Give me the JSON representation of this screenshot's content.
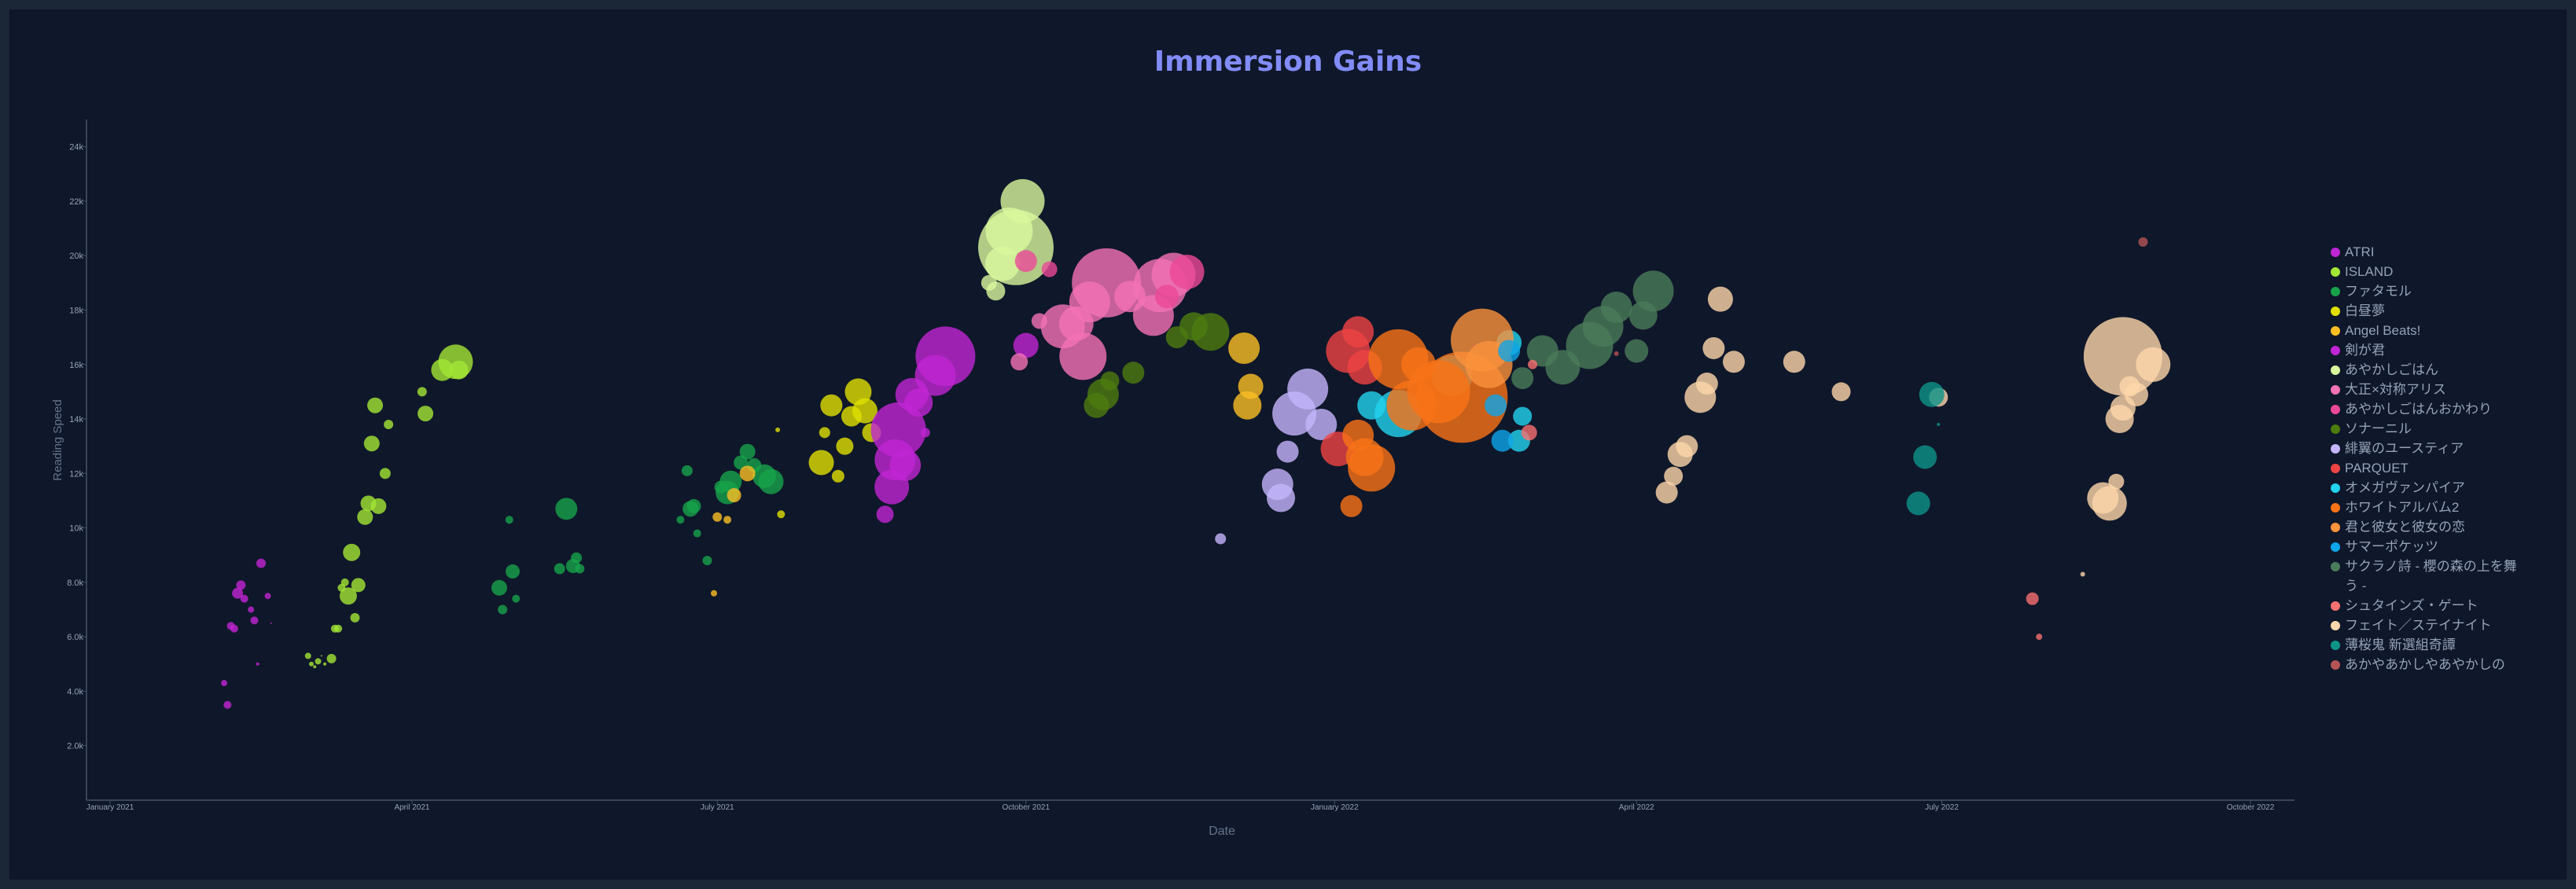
{
  "chart_data": {
    "type": "scatter",
    "title": "Immersion Gains",
    "xlabel": "Date",
    "ylabel": "Reading Speed",
    "x_ticks": [
      "January 2021",
      "April 2021",
      "July 2021",
      "October 2021",
      "January 2022",
      "April 2022",
      "July 2022",
      "October 2022"
    ],
    "y_ticks": [
      "2.0k",
      "4.0k",
      "6.0k",
      "8.0k",
      "10k",
      "12k",
      "14k",
      "16k",
      "18k",
      "20k",
      "22k",
      "24k"
    ],
    "legend_position": "right",
    "grid": false,
    "series": [
      {
        "name": "ATRI",
        "color": "#c026d3",
        "points": [
          [
            "2021-02-04",
            4300,
            4
          ],
          [
            "2021-02-05",
            3500,
            5
          ],
          [
            "2021-02-06",
            6400,
            5
          ],
          [
            "2021-02-07",
            6300,
            5
          ],
          [
            "2021-02-08",
            7600,
            7
          ],
          [
            "2021-02-09",
            7900,
            6
          ],
          [
            "2021-02-10",
            7400,
            5
          ],
          [
            "2021-02-12",
            7000,
            4
          ],
          [
            "2021-02-13",
            6600,
            5
          ],
          [
            "2021-02-14",
            5000,
            2
          ],
          [
            "2021-02-15",
            8700,
            6
          ],
          [
            "2021-02-17",
            7500,
            4
          ],
          [
            "2021-02-18",
            6500,
            1
          ]
        ]
      },
      {
        "name": "ISLAND",
        "color": "#a3e635",
        "points": [
          [
            "2021-03-01",
            5300,
            4
          ],
          [
            "2021-03-02",
            5000,
            3
          ],
          [
            "2021-03-03",
            4900,
            2
          ],
          [
            "2021-03-04",
            5100,
            4
          ],
          [
            "2021-03-05",
            5300,
            1
          ],
          [
            "2021-03-06",
            5000,
            2
          ],
          [
            "2021-03-08",
            5200,
            6
          ],
          [
            "2021-03-09",
            6300,
            5
          ],
          [
            "2021-03-10",
            6300,
            5
          ],
          [
            "2021-03-11",
            7800,
            5
          ],
          [
            "2021-03-12",
            8000,
            5
          ],
          [
            "2021-03-13",
            7500,
            11
          ],
          [
            "2021-03-14",
            9100,
            11
          ],
          [
            "2021-03-15",
            6700,
            6
          ],
          [
            "2021-03-16",
            7900,
            9
          ],
          [
            "2021-03-18",
            10400,
            10
          ],
          [
            "2021-03-19",
            10900,
            10
          ],
          [
            "2021-03-20",
            13100,
            10
          ],
          [
            "2021-03-21",
            14500,
            10
          ],
          [
            "2021-03-22",
            10800,
            10
          ],
          [
            "2021-03-24",
            12000,
            7
          ],
          [
            "2021-03-25",
            13800,
            6
          ],
          [
            "2021-04-04",
            15000,
            6
          ],
          [
            "2021-04-05",
            14200,
            10
          ],
          [
            "2021-04-10",
            15800,
            14
          ],
          [
            "2021-04-14",
            16100,
            22
          ],
          [
            "2021-04-15",
            15800,
            12
          ]
        ]
      },
      {
        "name": "ファタモル",
        "color": "#16a34a",
        "points": [
          [
            "2021-04-27",
            7800,
            10
          ],
          [
            "2021-04-28",
            7000,
            6
          ],
          [
            "2021-04-30",
            10300,
            5
          ],
          [
            "2021-05-01",
            8400,
            9
          ],
          [
            "2021-05-02",
            7400,
            5
          ],
          [
            "2021-05-15",
            8500,
            7
          ],
          [
            "2021-05-17",
            10700,
            14
          ],
          [
            "2021-05-19",
            8600,
            9
          ],
          [
            "2021-05-20",
            8900,
            7
          ],
          [
            "2021-05-21",
            8500,
            6
          ],
          [
            "2021-06-20",
            10300,
            5
          ],
          [
            "2021-06-22",
            12100,
            7
          ],
          [
            "2021-06-23",
            10700,
            10
          ],
          [
            "2021-06-24",
            10800,
            9
          ],
          [
            "2021-06-25",
            9800,
            5
          ],
          [
            "2021-06-28",
            8800,
            6
          ],
          [
            "2021-07-02",
            11500,
            8
          ],
          [
            "2021-07-04",
            11300,
            15
          ],
          [
            "2021-07-05",
            11700,
            14
          ],
          [
            "2021-07-08",
            12400,
            9
          ],
          [
            "2021-07-10",
            12800,
            10
          ],
          [
            "2021-07-12",
            12300,
            9
          ],
          [
            "2021-07-15",
            11900,
            15
          ],
          [
            "2021-07-17",
            11700,
            16
          ]
        ]
      },
      {
        "name": "白昼夢",
        "color": "#e0e000",
        "points": [
          [
            "2021-07-19",
            13600,
            3
          ],
          [
            "2021-07-20",
            10500,
            5
          ],
          [
            "2021-08-01",
            12400,
            16
          ],
          [
            "2021-08-02",
            13500,
            7
          ],
          [
            "2021-08-04",
            14500,
            14
          ],
          [
            "2021-08-06",
            11900,
            8
          ],
          [
            "2021-08-08",
            13000,
            11
          ],
          [
            "2021-08-10",
            14100,
            13
          ],
          [
            "2021-08-12",
            15000,
            17
          ],
          [
            "2021-08-14",
            14300,
            16
          ],
          [
            "2021-08-16",
            13500,
            12
          ]
        ]
      },
      {
        "name": "Angel Beats!",
        "color": "#fbbf24",
        "points": [
          [
            "2021-06-30",
            7600,
            4
          ],
          [
            "2021-07-01",
            10400,
            6
          ],
          [
            "2021-07-04",
            10300,
            5
          ],
          [
            "2021-07-06",
            11200,
            9
          ],
          [
            "2021-07-10",
            12000,
            10
          ],
          [
            "2021-12-05",
            16600,
            20
          ],
          [
            "2021-12-06",
            14500,
            18
          ],
          [
            "2021-12-07",
            15200,
            16
          ]
        ]
      },
      {
        "name": "剣が君",
        "color": "#c026d3",
        "points": [
          [
            "2021-08-20",
            10500,
            11
          ],
          [
            "2021-08-22",
            11500,
            22
          ],
          [
            "2021-08-23",
            12500,
            26
          ],
          [
            "2021-08-24",
            13600,
            35
          ],
          [
            "2021-08-26",
            12300,
            20
          ],
          [
            "2021-08-28",
            14900,
            21
          ],
          [
            "2021-08-30",
            14600,
            18
          ],
          [
            "2021-09-01",
            13500,
            6
          ],
          [
            "2021-09-04",
            15600,
            26
          ],
          [
            "2021-09-07",
            16300,
            38
          ],
          [
            "2021-10-01",
            16700,
            16
          ]
        ]
      },
      {
        "name": "あやかしごはん",
        "color": "#d9f99d",
        "points": [
          [
            "2021-09-20",
            19000,
            10
          ],
          [
            "2021-09-22",
            18700,
            12
          ],
          [
            "2021-09-24",
            19700,
            22
          ],
          [
            "2021-09-26",
            20900,
            30
          ],
          [
            "2021-09-28",
            20300,
            48
          ],
          [
            "2021-09-30",
            22000,
            28
          ]
        ]
      },
      {
        "name": "大正×対称アリス",
        "color": "#f472b6",
        "points": [
          [
            "2021-09-29",
            16100,
            11
          ],
          [
            "2021-10-05",
            17600,
            10
          ],
          [
            "2021-10-12",
            17400,
            28
          ],
          [
            "2021-10-16",
            17500,
            22
          ],
          [
            "2021-10-18",
            16300,
            30
          ],
          [
            "2021-10-20",
            18300,
            26
          ],
          [
            "2021-10-25",
            19000,
            44
          ],
          [
            "2021-11-01",
            18500,
            20
          ],
          [
            "2021-11-08",
            17800,
            26
          ],
          [
            "2021-11-10",
            18900,
            34
          ],
          [
            "2021-11-14",
            19300,
            28
          ]
        ]
      },
      {
        "name": "あやかしごはんおかわり",
        "color": "#ec4899",
        "points": [
          [
            "2021-10-01",
            19800,
            14
          ],
          [
            "2021-10-08",
            19500,
            10
          ],
          [
            "2021-11-12",
            18500,
            15
          ],
          [
            "2021-11-18",
            19400,
            22
          ]
        ]
      },
      {
        "name": "ソナーニル",
        "color": "#4d7c0f",
        "points": [
          [
            "2021-10-22",
            14500,
            16
          ],
          [
            "2021-10-24",
            14900,
            20
          ],
          [
            "2021-10-26",
            15400,
            12
          ],
          [
            "2021-11-02",
            15700,
            14
          ],
          [
            "2021-11-15",
            17000,
            14
          ],
          [
            "2021-11-20",
            17400,
            18
          ],
          [
            "2021-11-25",
            17200,
            24
          ]
        ]
      },
      {
        "name": "緋翼のユースティア",
        "color": "#c4b5fd",
        "points": [
          [
            "2021-11-28",
            9600,
            7
          ],
          [
            "2021-12-15",
            11600,
            20
          ],
          [
            "2021-12-16",
            11100,
            18
          ],
          [
            "2021-12-18",
            12800,
            14
          ],
          [
            "2021-12-20",
            14200,
            28
          ],
          [
            "2021-12-24",
            15100,
            26
          ],
          [
            "2021-12-28",
            13800,
            20
          ]
        ]
      },
      {
        "name": "PARQUET",
        "color": "#ef4444",
        "points": [
          [
            "2022-01-02",
            12900,
            22
          ],
          [
            "2022-01-05",
            16500,
            28
          ],
          [
            "2022-01-08",
            17200,
            20
          ],
          [
            "2022-01-10",
            15900,
            22
          ]
        ]
      },
      {
        "name": "オメガヴァンパイア",
        "color": "#22d3ee",
        "points": [
          [
            "2022-01-12",
            14500,
            18
          ],
          [
            "2022-01-20",
            14200,
            30
          ],
          [
            "2022-02-05",
            15600,
            26
          ],
          [
            "2022-02-22",
            16800,
            16
          ],
          [
            "2022-02-25",
            13200,
            14
          ],
          [
            "2022-02-26",
            14100,
            12
          ]
        ]
      },
      {
        "name": "ホワイトアルバム2",
        "color": "#f97316",
        "points": [
          [
            "2022-01-06",
            10800,
            14
          ],
          [
            "2022-01-08",
            13400,
            20
          ],
          [
            "2022-01-10",
            12600,
            24
          ],
          [
            "2022-01-12",
            12200,
            30
          ],
          [
            "2022-01-20",
            16200,
            38
          ],
          [
            "2022-01-24",
            14500,
            32
          ],
          [
            "2022-01-26",
            16000,
            22
          ],
          [
            "2022-02-01",
            15000,
            40
          ],
          [
            "2022-02-08",
            14800,
            58
          ]
        ]
      },
      {
        "name": "君と彼女と彼女の恋",
        "color": "#fb923c",
        "points": [
          [
            "2022-02-14",
            16900,
            40
          ],
          [
            "2022-02-16",
            16000,
            30
          ]
        ]
      },
      {
        "name": "サマーポケッツ",
        "color": "#0ea5e9",
        "points": [
          [
            "2022-02-18",
            14500,
            14
          ],
          [
            "2022-02-20",
            13200,
            14
          ],
          [
            "2022-02-22",
            16500,
            14
          ]
        ]
      },
      {
        "name": "サクラノ詩 - 櫻の森の上を舞う -",
        "color": "#4a7c59",
        "points": [
          [
            "2022-02-26",
            15500,
            14
          ],
          [
            "2022-03-04",
            16500,
            20
          ],
          [
            "2022-03-10",
            15900,
            22
          ],
          [
            "2022-03-18",
            16700,
            30
          ],
          [
            "2022-03-22",
            17400,
            26
          ],
          [
            "2022-03-26",
            18100,
            20
          ],
          [
            "2022-04-01",
            16500,
            15
          ],
          [
            "2022-04-03",
            17800,
            18
          ],
          [
            "2022-04-06",
            18700,
            26
          ]
        ]
      },
      {
        "name": "シュタインズ・ゲート",
        "color": "#f87171",
        "points": [
          [
            "2022-02-28",
            13500,
            10
          ],
          [
            "2022-03-01",
            16000,
            6
          ],
          [
            "2022-07-28",
            7400,
            8
          ],
          [
            "2022-07-30",
            6000,
            4
          ]
        ]
      },
      {
        "name": "フェイト／ステイナイト",
        "color": "#fed7aa",
        "points": [
          [
            "2022-04-10",
            11300,
            14
          ],
          [
            "2022-04-12",
            11900,
            12
          ],
          [
            "2022-04-14",
            12700,
            16
          ],
          [
            "2022-04-16",
            13000,
            14
          ],
          [
            "2022-04-20",
            14800,
            20
          ],
          [
            "2022-04-22",
            15300,
            14
          ],
          [
            "2022-04-24",
            16600,
            14
          ],
          [
            "2022-04-26",
            18400,
            16
          ],
          [
            "2022-04-30",
            16100,
            14
          ],
          [
            "2022-05-18",
            16100,
            14
          ],
          [
            "2022-06-01",
            15000,
            12
          ],
          [
            "2022-08-12",
            8300,
            3
          ],
          [
            "2022-08-18",
            11100,
            20
          ],
          [
            "2022-08-20",
            10900,
            22
          ],
          [
            "2022-08-22",
            11700,
            10
          ],
          [
            "2022-08-23",
            14000,
            18
          ],
          [
            "2022-08-24",
            14400,
            16
          ],
          [
            "2022-08-26",
            15200,
            13
          ],
          [
            "2022-08-28",
            14900,
            15
          ],
          [
            "2022-08-24",
            16300,
            50
          ],
          [
            "2022-09-02",
            16000,
            22
          ],
          [
            "2022-06-30",
            14800,
            12
          ]
        ]
      },
      {
        "name": "薄桜鬼 新選組奇譚",
        "color": "#0d9488",
        "points": [
          [
            "2022-06-24",
            10900,
            15
          ],
          [
            "2022-06-26",
            12600,
            15
          ],
          [
            "2022-06-28",
            14900,
            16
          ],
          [
            "2022-06-30",
            13800,
            2
          ]
        ]
      },
      {
        "name": "あかやあかしやあやかしの",
        "color": "#b45454",
        "points": [
          [
            "2022-08-30",
            20500,
            6
          ],
          [
            "2022-03-26",
            16400,
            3
          ]
        ]
      }
    ]
  }
}
